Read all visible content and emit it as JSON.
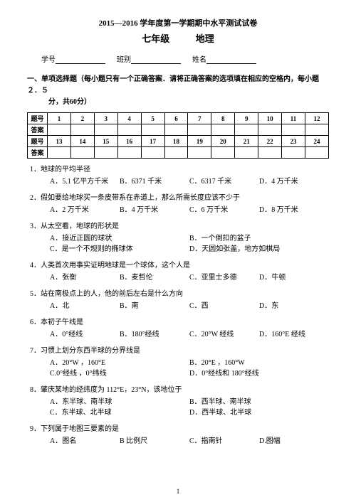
{
  "header": {
    "line1": "2015—2016 学年度第一学期期中水平测试试卷",
    "grade": "七年级",
    "subject": "地理",
    "labels": {
      "xuehao": "学号",
      "banbie": "班别",
      "xingming": "姓名"
    }
  },
  "section1": {
    "head1": "一、单项选择题（每小题只有一个正确答案．请将正确答案的选项填在相应的空格内，每小题２．５",
    "head2": "分，共60分）"
  },
  "table": {
    "row_label": "题号",
    "ans_label": "答案",
    "nums1": [
      "1",
      "2",
      "3",
      "4",
      "5",
      "6",
      "7",
      "8",
      "9",
      "10",
      "11",
      "12"
    ],
    "nums2": [
      "13",
      "14",
      "15",
      "16",
      "17",
      "18",
      "19",
      "20",
      "21",
      "22",
      "23",
      "24"
    ]
  },
  "questions": [
    {
      "n": "1．",
      "t": "地球的平均半径",
      "opts": [
        "A．5.1 亿平方千米",
        "B．6371 千米",
        "C．6317 千米",
        "D．4 万千米"
      ],
      "cols": 4
    },
    {
      "n": "2．",
      "t": "假如要给地球买一条皮带系在赤道上，那么所需长度应该不少于",
      "opts": [
        "A．2 万千米",
        "B．4 万千米",
        "C．6 万千米",
        "D．8 万千米"
      ],
      "cols": 4
    },
    {
      "n": "3．",
      "t": "从太空看，地球的形状是",
      "opts": [
        "A．接近正圆的球状",
        "B．一个倒扣的盆子",
        "C．是一个不规则的椭球体",
        "D．天圆如张盖，地方如棋局"
      ],
      "cols": 2
    },
    {
      "n": "4．",
      "t": "人类首次用事实证明地球是一个球体，这个人是",
      "opts": [
        "A．张衡",
        "B．麦哲伦",
        "C．亚里士多德",
        "D．牛顿"
      ],
      "cols": 4
    },
    {
      "n": "5．",
      "t": "站在南极点上的人，他的前后左右是什么方向",
      "opts": [
        "A．北",
        "B．南",
        "C．西",
        "D．东"
      ],
      "cols": 4
    },
    {
      "n": "6．",
      "t": "本初子午线是",
      "opts": [
        "A．0°经线",
        "B．180°经线",
        "C．20°W 经线",
        "D．160°E 经线"
      ],
      "cols": 4
    },
    {
      "n": "7．",
      "t": "习惯上划分东西半球的分界线是",
      "opts": [
        "A．20°W ，160°E",
        "B．20°E ，160°W",
        "C.0°经线 ，0°纬线",
        "D．0°经线和 180°经线"
      ],
      "cols": 2
    },
    {
      "n": "8．",
      "t": "肇庆某地的经纬度为 112°E，23°N，该地位于",
      "opts": [
        "A．东半球、南半球",
        "B．西半球、南半球",
        "C．东半球、北半球",
        "D．西半球、北半球"
      ],
      "cols": 2
    },
    {
      "n": "9．",
      "t": "下列属于地图三要素的是",
      "opts": [
        "A．图名",
        "B 比例尺",
        "C．指南针",
        "D.图幅"
      ],
      "cols": 4
    }
  ],
  "pagenum": "1"
}
